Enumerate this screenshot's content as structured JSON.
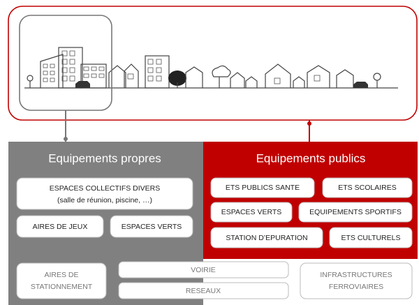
{
  "panels": {
    "left": {
      "title": "Equipements propres",
      "items": [
        {
          "lines": [
            "ESPACES COLLECTIFS  DIVERS",
            "(salle de réunion, piscine, …)"
          ]
        },
        {
          "lines": [
            "AIRES DE JEUX"
          ]
        },
        {
          "lines": [
            "ESPACES VERTS"
          ]
        }
      ]
    },
    "right": {
      "title": "Equipements publics",
      "items": [
        "ETS PUBLICS SANTE",
        "ETS SCOLAIRES",
        "ESPACES VERTS",
        "EQUIPEMENTS SPORTIFS",
        "STATION D’EPURATION",
        "ETS CULTURELS"
      ]
    }
  },
  "shared": [
    {
      "lines": [
        "AIRES DE",
        "STATIONNEMENT"
      ]
    },
    {
      "lines": [
        "VOIRIE"
      ]
    },
    {
      "lines": [
        "RESEAUX"
      ]
    },
    {
      "lines": [
        "INFRASTRUCTURES",
        "FERROVIAIRES"
      ]
    }
  ]
}
